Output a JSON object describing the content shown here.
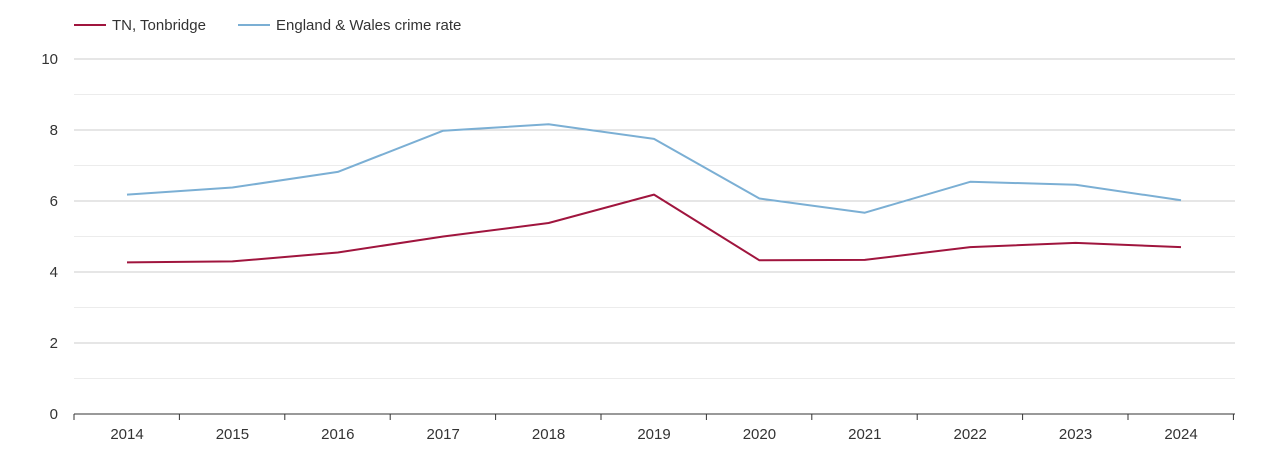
{
  "chart_data": {
    "type": "line",
    "title": "",
    "xlabel": "",
    "ylabel": "",
    "x": [
      "2014",
      "2015",
      "2016",
      "2017",
      "2018",
      "2019",
      "2020",
      "2021",
      "2022",
      "2023",
      "2024"
    ],
    "ylim": [
      0,
      10
    ],
    "yticks": [
      "0",
      "2",
      "4",
      "6",
      "8",
      "10"
    ],
    "grid": true,
    "legend_position": "top-left",
    "series": [
      {
        "name": "TN, Tonbridge",
        "color": "#a0153e",
        "values": [
          4.27,
          4.3,
          4.55,
          5.0,
          5.38,
          6.18,
          4.33,
          4.34,
          4.7,
          4.82,
          4.7
        ]
      },
      {
        "name": "England & Wales crime rate",
        "color": "#7bafd4",
        "values": [
          6.18,
          6.38,
          6.82,
          7.98,
          8.16,
          7.75,
          6.07,
          5.67,
          6.54,
          6.46,
          6.02
        ]
      }
    ]
  }
}
